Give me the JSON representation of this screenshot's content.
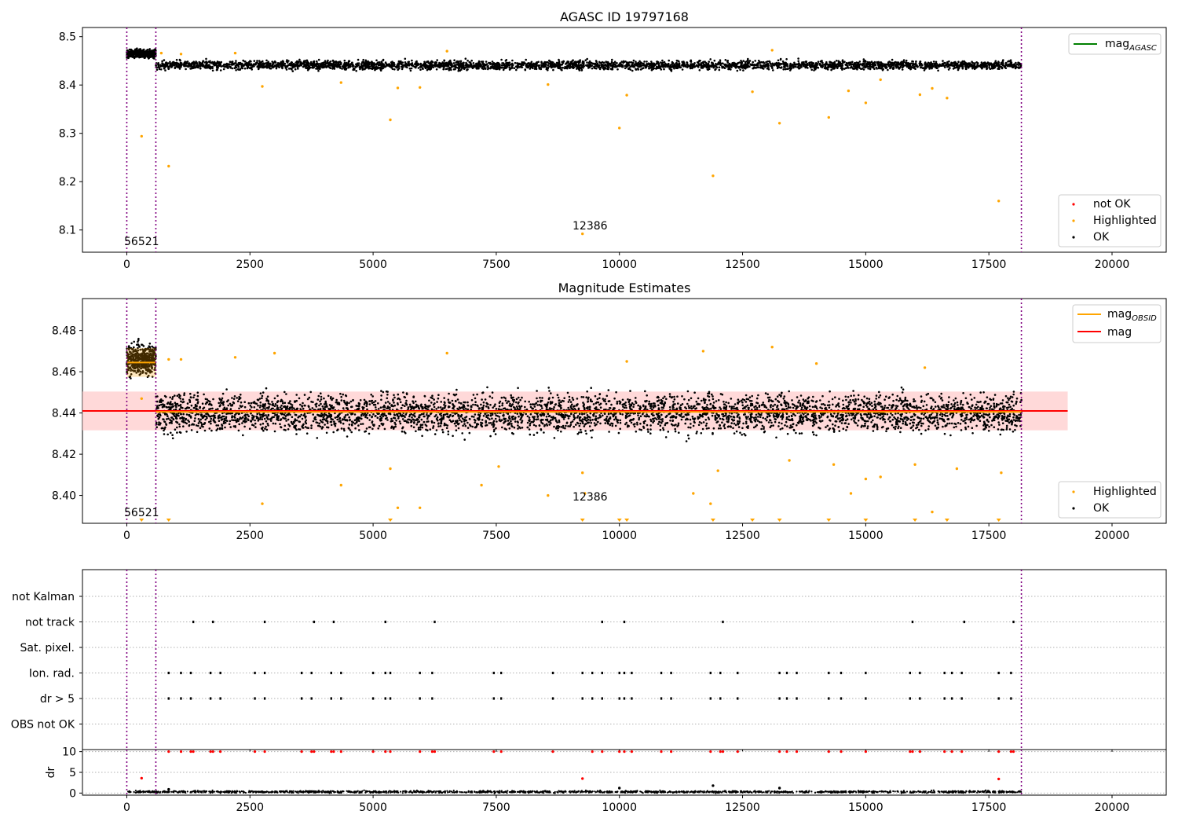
{
  "chart_data": [
    {
      "type": "scatter",
      "title": "AGASC ID 19797168",
      "xlabel": "",
      "ylabel": "",
      "xlim": [
        -900,
        21100
      ],
      "ylim": [
        8.054,
        8.519
      ],
      "xticks": [
        0,
        2500,
        5000,
        7500,
        10000,
        12500,
        15000,
        17500,
        20000
      ],
      "yticks": [
        8.1,
        8.2,
        8.3,
        8.4,
        8.5
      ],
      "vlines": [
        0,
        590,
        18160
      ],
      "annotations": [
        {
          "text": "56521",
          "x": 0,
          "y": 8.07
        },
        {
          "text": "12386",
          "x": 9300,
          "y": 8.103
        }
      ],
      "legend_upper": {
        "placement": "top-right",
        "entries": [
          {
            "label": "mag",
            "sub": "AGASC",
            "color": "#008000"
          }
        ]
      },
      "legend_lower": {
        "placement": "bottom-right",
        "entries": [
          {
            "label": "not OK",
            "color": "#ff0000"
          },
          {
            "label": "Highlighted",
            "color": "#ffa500"
          },
          {
            "label": "OK",
            "color": "#000000"
          }
        ]
      },
      "series": [
        {
          "name": "OK",
          "segments": [
            {
              "x": [
                0,
                590
              ],
              "center": 8.465,
              "spread": 0.008
            },
            {
              "x": [
                590,
                18160
              ],
              "center": 8.441,
              "spread": 0.009
            }
          ]
        },
        {
          "name": "Highlighted",
          "points": [
            [
              300,
              8.294
            ],
            [
              850,
              8.232
            ],
            [
              5350,
              8.328
            ],
            [
              9250,
              8.092
            ],
            [
              10000,
              8.311
            ],
            [
              11900,
              8.212
            ],
            [
              13250,
              8.321
            ],
            [
              14250,
              8.333
            ],
            [
              17700,
              8.16
            ],
            [
              2750,
              8.397
            ],
            [
              4350,
              8.405
            ],
            [
              5500,
              8.394
            ],
            [
              5950,
              8.395
            ],
            [
              8550,
              8.401
            ],
            [
              10150,
              8.379
            ],
            [
              12700,
              8.386
            ],
            [
              14650,
              8.388
            ],
            [
              15000,
              8.363
            ],
            [
              16100,
              8.38
            ],
            [
              16350,
              8.393
            ],
            [
              16650,
              8.373
            ],
            [
              700,
              8.466
            ],
            [
              1100,
              8.464
            ],
            [
              2200,
              8.466
            ],
            [
              6500,
              8.47
            ],
            [
              13100,
              8.472
            ],
            [
              15300,
              8.411
            ]
          ]
        }
      ]
    },
    {
      "type": "scatter",
      "title": "Magnitude Estimates",
      "xlabel": "",
      "ylabel": "",
      "xlim": [
        -900,
        21100
      ],
      "ylim": [
        8.3865,
        8.4955
      ],
      "xticks": [
        0,
        2500,
        5000,
        7500,
        10000,
        12500,
        15000,
        17500,
        20000
      ],
      "yticks": [
        8.4,
        8.42,
        8.44,
        8.46,
        8.48
      ],
      "vlines": [
        0,
        590,
        18160
      ],
      "band": {
        "y": [
          8.4316,
          8.4504
        ],
        "x": [
          -900,
          19100
        ],
        "color": "#ffcccc"
      },
      "hlines": [
        {
          "name": "mag",
          "y": 8.441,
          "x": [
            -900,
            19100
          ],
          "color": "#ff0000"
        },
        {
          "name": "mag_OBSID",
          "y": 8.4645,
          "x": [
            0,
            590
          ],
          "color": "#ffa500"
        },
        {
          "name": "mag_OBSID",
          "y": 8.4405,
          "x": [
            590,
            18160
          ],
          "color": "#ffa500"
        }
      ],
      "annotations": [
        {
          "text": "56521",
          "x": 0,
          "y": 8.3905
        },
        {
          "text": "12386",
          "x": 9300,
          "y": 8.3985
        }
      ],
      "legend_upper": {
        "placement": "top-right",
        "entries": [
          {
            "label": "mag",
            "sub": "OBSID",
            "color": "#ffa500"
          },
          {
            "label": "mag",
            "sub": "",
            "color": "#ff0000"
          }
        ]
      },
      "legend_lower": {
        "placement": "bottom-right",
        "entries": [
          {
            "label": "Highlighted",
            "color": "#ffa500"
          },
          {
            "label": "OK",
            "color": "#000000"
          }
        ]
      },
      "series": [
        {
          "name": "OK",
          "segments": [
            {
              "x": [
                0,
                590
              ],
              "center": 8.466,
              "spread": 0.007
            },
            {
              "x": [
                590,
                18160
              ],
              "center": 8.44,
              "spread": 0.009
            }
          ]
        },
        {
          "name": "Highlighted",
          "points": [
            [
              300,
              8.447
            ],
            [
              2750,
              8.396
            ],
            [
              3000,
              8.469
            ],
            [
              4350,
              8.405
            ],
            [
              5350,
              8.413
            ],
            [
              5500,
              8.394
            ],
            [
              5950,
              8.394
            ],
            [
              6500,
              8.469
            ],
            [
              7200,
              8.405
            ],
            [
              7550,
              8.414
            ],
            [
              8550,
              8.4
            ],
            [
              9250,
              8.411
            ],
            [
              9300,
              8.401
            ],
            [
              10150,
              8.465
            ],
            [
              11500,
              8.401
            ],
            [
              11700,
              8.47
            ],
            [
              11850,
              8.396
            ],
            [
              12000,
              8.412
            ],
            [
              13100,
              8.472
            ],
            [
              13450,
              8.417
            ],
            [
              14000,
              8.464
            ],
            [
              14350,
              8.415
            ],
            [
              14700,
              8.401
            ],
            [
              15000,
              8.408
            ],
            [
              15300,
              8.409
            ],
            [
              16000,
              8.415
            ],
            [
              16200,
              8.462
            ],
            [
              16350,
              8.392
            ],
            [
              16850,
              8.413
            ],
            [
              17750,
              8.411
            ],
            [
              850,
              8.466
            ],
            [
              1100,
              8.466
            ],
            [
              2200,
              8.467
            ]
          ]
        }
      ],
      "markers_at_bottom": [
        300,
        850,
        5350,
        9250,
        10000,
        10150,
        11900,
        12700,
        13250,
        14250,
        15000,
        16000,
        16650,
        17700
      ]
    },
    {
      "type": "scatter",
      "title": "",
      "xlabel": "",
      "ylabel": "",
      "xlim": [
        -900,
        21100
      ],
      "xticks": [
        0,
        2500,
        5000,
        7500,
        10000,
        12500,
        15000,
        17500,
        20000
      ],
      "vlines": [
        0,
        590,
        18160
      ],
      "categories": [
        "not Kalman",
        "not track",
        "Sat. pixel.",
        "Ion. rad.",
        "dr > 5",
        "OBS not OK"
      ],
      "flags": {
        "not Kalman": [],
        "not track": [
          1350,
          1750,
          2800,
          3800,
          4200,
          5250,
          6250,
          9650,
          10100,
          12100,
          15950,
          17000,
          18000
        ],
        "Sat. pixel.": [],
        "Ion. rad.": [
          850,
          1100,
          1300,
          1700,
          1900,
          2600,
          2800,
          3550,
          3750,
          4150,
          4350,
          5000,
          5250,
          5350,
          5950,
          6200,
          7450,
          7600,
          8650,
          9250,
          9450,
          9650,
          10000,
          10100,
          10250,
          10850,
          11050,
          11850,
          12050,
          12400,
          13250,
          13400,
          13600,
          14250,
          14500,
          15000,
          15900,
          16100,
          16600,
          16750,
          16950,
          17700,
          17950
        ],
        "dr > 5": [
          850,
          1100,
          1300,
          1700,
          1900,
          2600,
          2800,
          3550,
          3750,
          4150,
          4350,
          5000,
          5250,
          5350,
          5950,
          6200,
          7450,
          7600,
          8650,
          9250,
          9450,
          9650,
          10000,
          10100,
          10250,
          10850,
          11050,
          11850,
          12050,
          12400,
          13250,
          13400,
          13600,
          14250,
          14500,
          15000,
          15900,
          16100,
          16600,
          16750,
          16950,
          17700,
          17950
        ],
        "OBS not OK": []
      }
    },
    {
      "type": "scatter",
      "title": "",
      "xlabel": "",
      "ylabel": "dr",
      "xlim": [
        -900,
        21100
      ],
      "ylim": [
        -0.5,
        10.5
      ],
      "xticks": [
        0,
        2500,
        5000,
        7500,
        10000,
        12500,
        15000,
        17500,
        20000
      ],
      "yticks": [
        0,
        5,
        10
      ],
      "vlines": [
        0,
        590,
        18160
      ],
      "series": [
        {
          "name": "OK",
          "segments": [
            {
              "x": [
                0,
                18160
              ],
              "center": 0.3,
              "spread": 0.25
            }
          ]
        },
        {
          "name": "not OK",
          "clipped_y": 10,
          "points_x": [
            850,
            1100,
            1300,
            1350,
            1700,
            1750,
            1900,
            2600,
            2800,
            3550,
            3750,
            3800,
            4150,
            4200,
            4350,
            5000,
            5250,
            5350,
            5950,
            6200,
            6250,
            7450,
            7600,
            8650,
            9450,
            9650,
            10000,
            10100,
            10250,
            10850,
            11050,
            11850,
            12050,
            12100,
            12400,
            13250,
            13400,
            13600,
            14250,
            14500,
            15000,
            15900,
            15950,
            16100,
            16600,
            16750,
            16950,
            17700,
            17950,
            18000
          ]
        },
        {
          "name": "not OK",
          "points": [
            [
              300,
              3.6
            ],
            [
              9250,
              3.5
            ],
            [
              17700,
              3.4
            ]
          ]
        },
        {
          "name": "OK",
          "points": [
            [
              11900,
              1.8
            ],
            [
              13250,
              1.2
            ],
            [
              10000,
              1.2
            ],
            [
              850,
              0.9
            ]
          ]
        }
      ]
    }
  ]
}
